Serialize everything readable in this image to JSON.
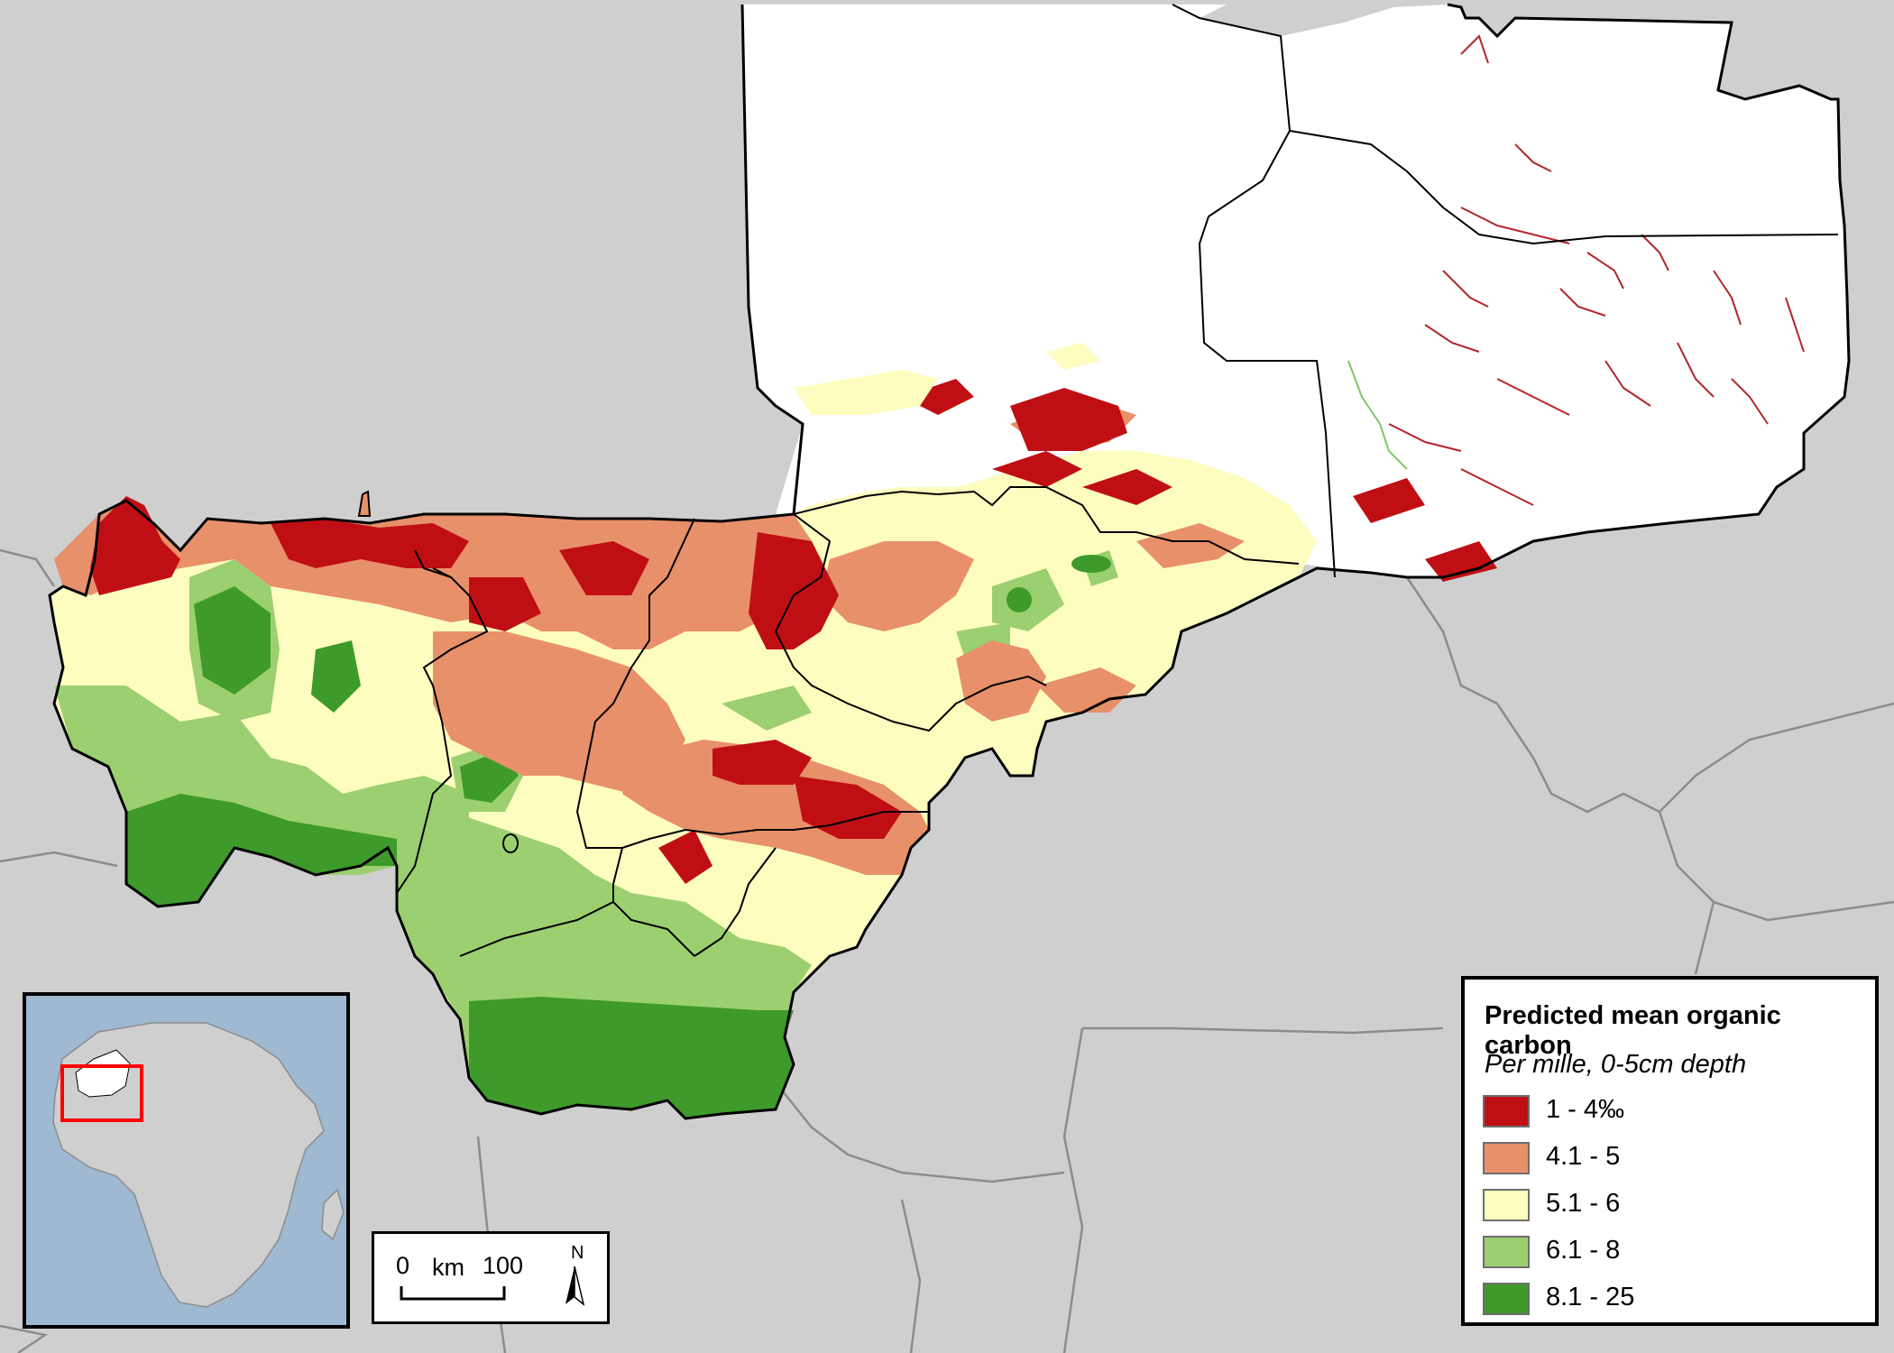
{
  "legend": {
    "title": "Predicted mean organic carbon",
    "subtitle": "Per mille, 0-5cm depth",
    "classes": [
      {
        "label": "1 - 4‰",
        "color": "#c00f14"
      },
      {
        "label": "4.1 - 5",
        "color": "#e8906a"
      },
      {
        "label": "5.1 - 6",
        "color": "#fdfdbf"
      },
      {
        "label": "6.1 - 8",
        "color": "#9ccf6f"
      },
      {
        "label": "8.1 - 25",
        "color": "#3e9a2a"
      }
    ]
  },
  "scale_bar": {
    "start": "0",
    "unit": "km",
    "end": "100"
  },
  "north_arrow": {
    "label": "N"
  },
  "colors": {
    "background_land": "#cfcfcf",
    "no_data": "#ffffff",
    "boundary": "#000000",
    "neighbor_border": "#8c8c8c",
    "inset_ocean": "#9fb9d3",
    "inset_highlight": "#ff0000"
  },
  "icons": [
    "north-arrow-icon",
    "scale-bar-icon"
  ]
}
